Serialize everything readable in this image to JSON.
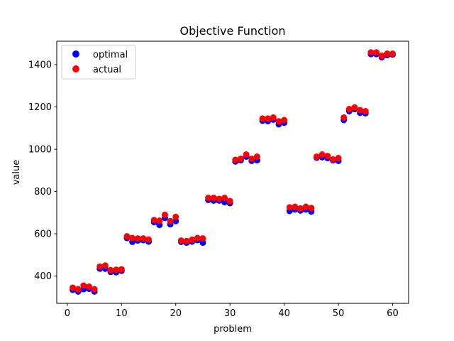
{
  "chart_data": {
    "type": "scatter",
    "title": "Objective Function",
    "xlabel": "problem",
    "ylabel": "value",
    "xlim": [
      -1.95,
      62.95
    ],
    "ylim": [
      271,
      1511
    ],
    "xticks": [
      0,
      10,
      20,
      30,
      40,
      50,
      60
    ],
    "yticks": [
      400,
      600,
      800,
      1000,
      1200,
      1400
    ],
    "grid": false,
    "legend_position": "top-left",
    "x": [
      1,
      2,
      3,
      4,
      5,
      6,
      7,
      8,
      9,
      10,
      11,
      12,
      13,
      14,
      15,
      16,
      17,
      18,
      19,
      20,
      21,
      22,
      23,
      24,
      25,
      26,
      27,
      28,
      29,
      30,
      31,
      32,
      33,
      34,
      35,
      36,
      37,
      38,
      39,
      40,
      41,
      42,
      43,
      44,
      45,
      46,
      47,
      48,
      49,
      50,
      51,
      52,
      53,
      54,
      55,
      56,
      57,
      58,
      59,
      60
    ],
    "series": [
      {
        "name": "optimal",
        "color": "#0000ff",
        "values": [
          335,
          327,
          338,
          340,
          327,
          435,
          435,
          420,
          418,
          425,
          580,
          562,
          568,
          570,
          563,
          655,
          642,
          675,
          645,
          660,
          562,
          558,
          563,
          570,
          558,
          760,
          757,
          757,
          750,
          745,
          942,
          948,
          965,
          945,
          948,
          1135,
          1133,
          1140,
          1118,
          1125,
          708,
          715,
          710,
          715,
          705,
          960,
          962,
          958,
          948,
          945,
          1138,
          1180,
          1190,
          1172,
          1170,
          1450,
          1450,
          1435,
          1445,
          1448
        ]
      },
      {
        "name": "actual",
        "color": "#ff0000",
        "values": [
          345,
          338,
          355,
          350,
          338,
          445,
          450,
          428,
          430,
          432,
          588,
          580,
          578,
          578,
          573,
          665,
          662,
          690,
          660,
          680,
          568,
          566,
          572,
          580,
          578,
          770,
          770,
          765,
          770,
          755,
          950,
          955,
          975,
          955,
          965,
          1145,
          1145,
          1150,
          1132,
          1138,
          725,
          728,
          720,
          728,
          722,
          965,
          975,
          968,
          952,
          958,
          1150,
          1190,
          1198,
          1185,
          1180,
          1458,
          1458,
          1442,
          1452,
          1452
        ]
      }
    ]
  }
}
